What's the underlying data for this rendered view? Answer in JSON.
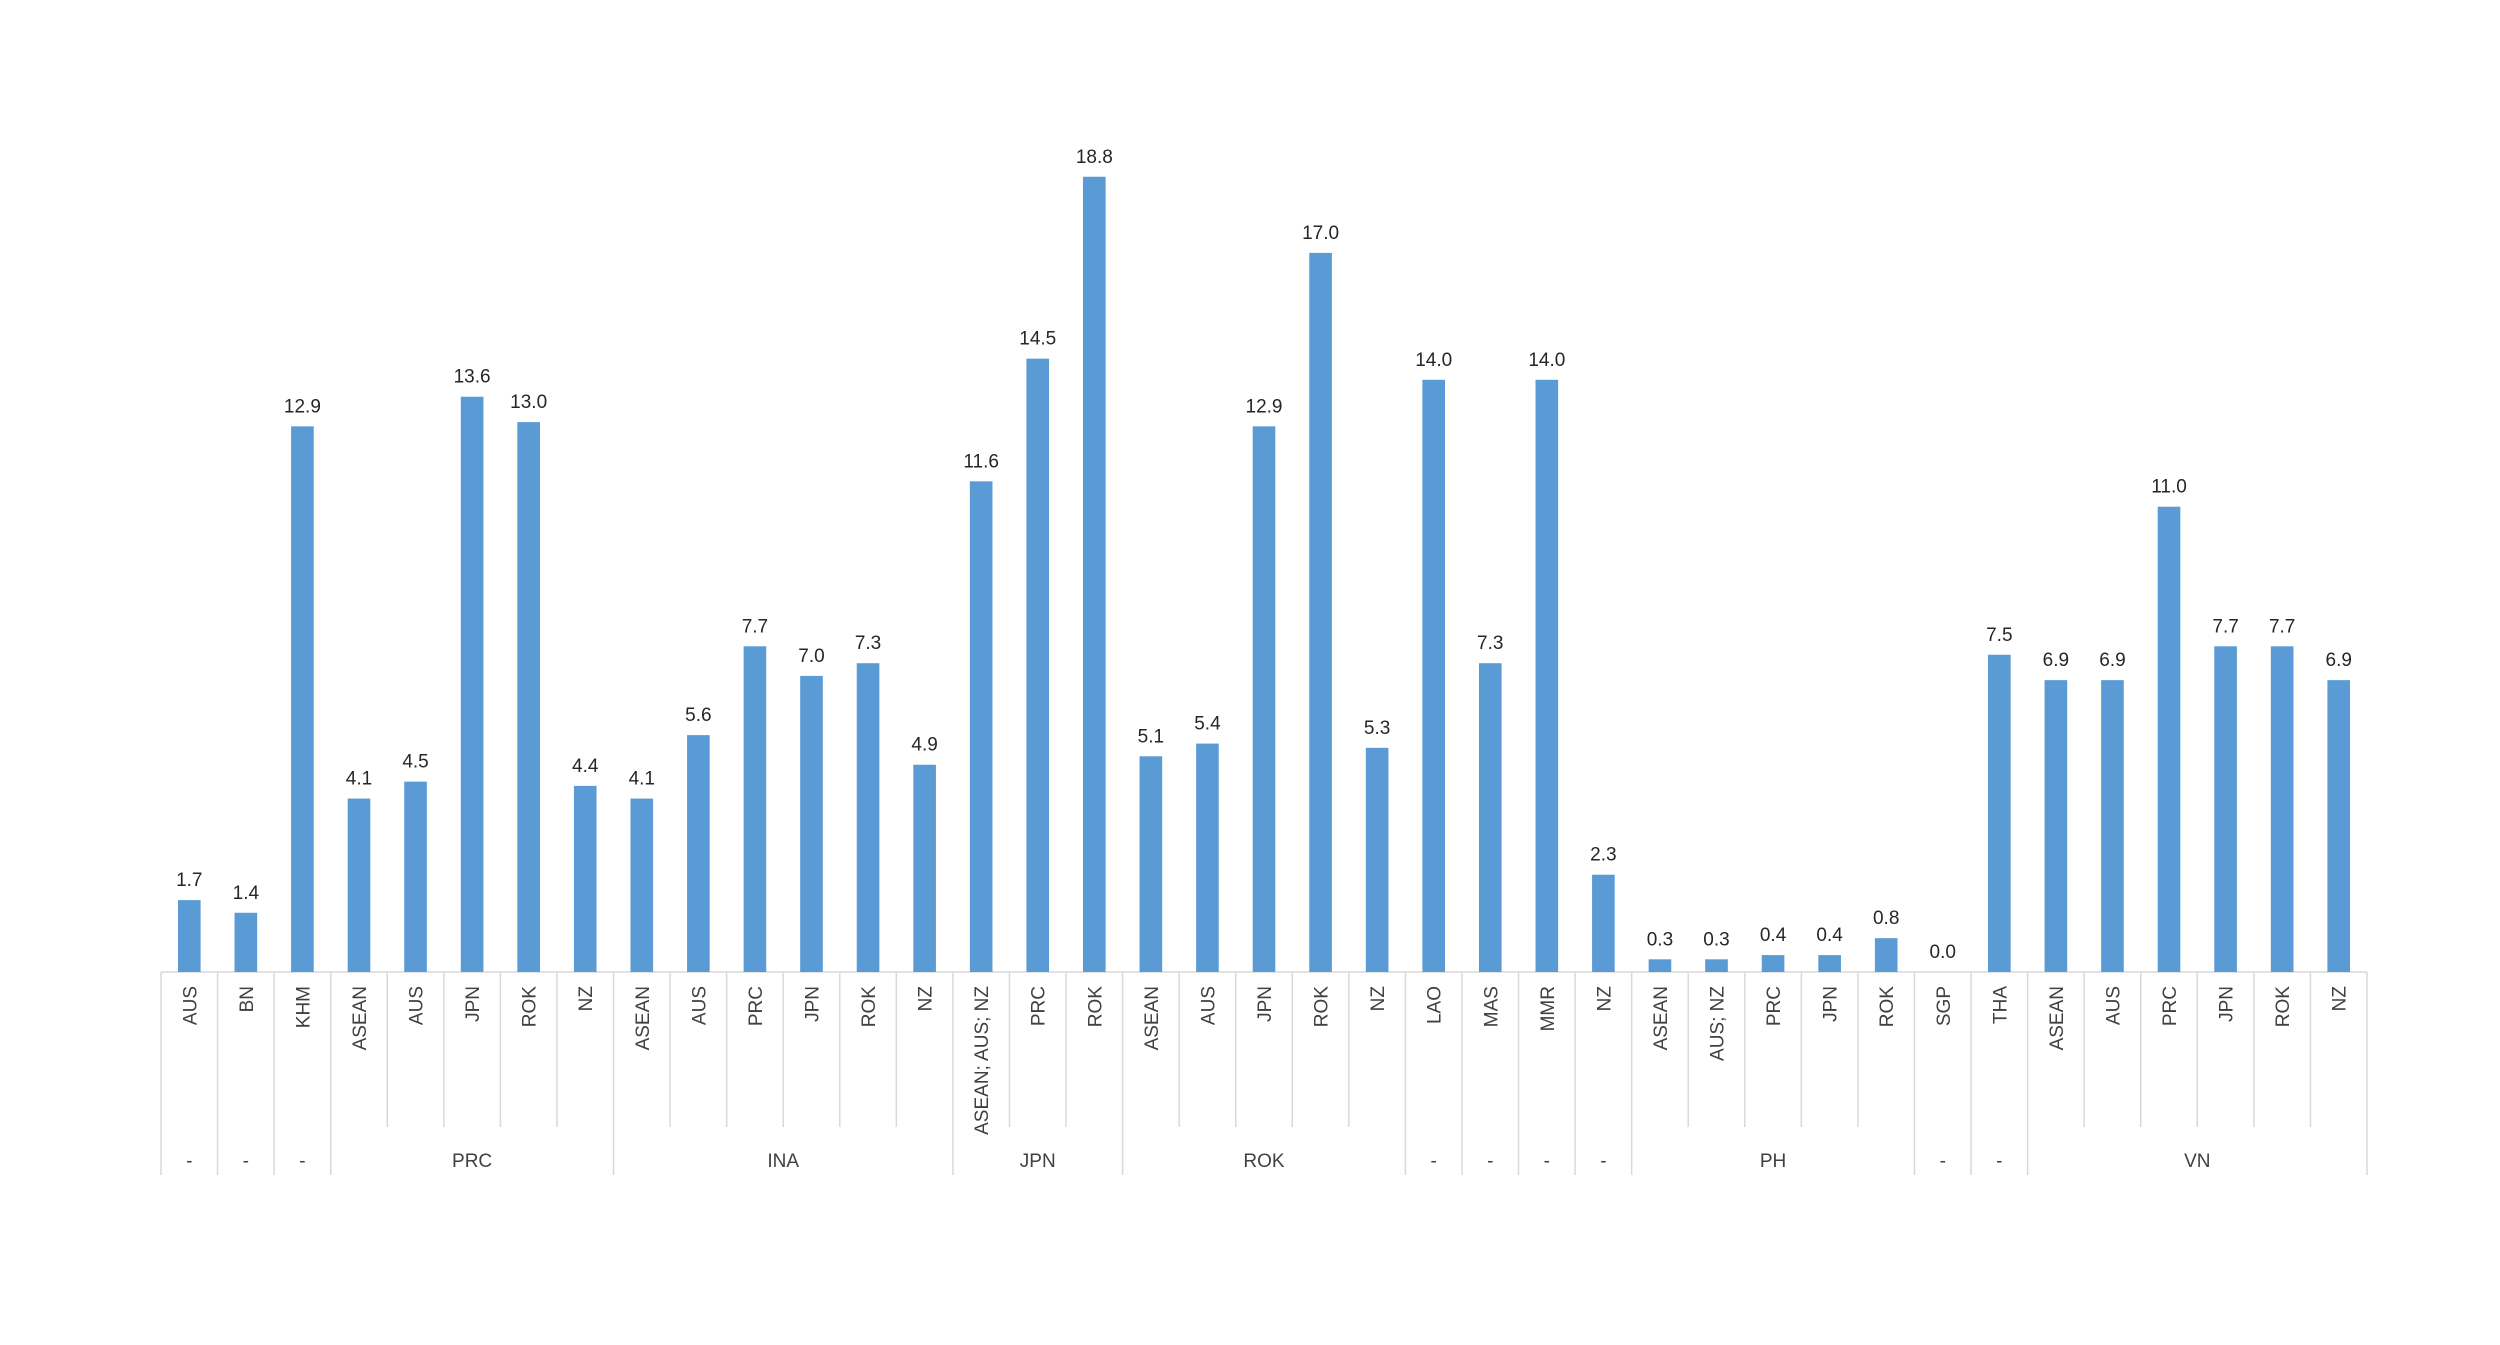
{
  "chart_data": {
    "type": "bar",
    "color": "#5b9bd5",
    "ylim": [
      0,
      20
    ],
    "groups": [
      {
        "label": "-",
        "categories": [
          "AUS"
        ],
        "values": [
          1.7
        ],
        "value_labels": [
          "1.7"
        ]
      },
      {
        "label": "-",
        "categories": [
          "BN"
        ],
        "values": [
          1.4
        ],
        "value_labels": [
          "1.4"
        ]
      },
      {
        "label": "-",
        "categories": [
          "KHM"
        ],
        "values": [
          12.9
        ],
        "value_labels": [
          "12.9"
        ]
      },
      {
        "label": "PRC",
        "categories": [
          "ASEAN",
          "AUS",
          "JPN",
          "ROK",
          "NZ"
        ],
        "values": [
          4.1,
          4.5,
          13.6,
          13.0,
          4.4
        ],
        "value_labels": [
          "4.1",
          "4.5",
          "13.6",
          "13.0",
          "4.4"
        ]
      },
      {
        "label": "INA",
        "categories": [
          "ASEAN",
          "AUS",
          "PRC",
          "JPN",
          "ROK",
          "NZ"
        ],
        "values": [
          4.1,
          5.6,
          7.7,
          7.0,
          7.3,
          4.9
        ],
        "value_labels": [
          "4.1",
          "5.6",
          "7.7",
          "7.0",
          "7.3",
          "4.9"
        ]
      },
      {
        "label": "JPN",
        "categories": [
          "ASEAN; AUS; NZ",
          "PRC",
          "ROK"
        ],
        "values": [
          11.6,
          14.5,
          18.8
        ],
        "value_labels": [
          "11.6",
          "14.5",
          "18.8"
        ]
      },
      {
        "label": "ROK",
        "categories": [
          "ASEAN",
          "AUS",
          "JPN",
          "ROK",
          "NZ"
        ],
        "values": [
          5.1,
          5.4,
          12.9,
          17.0,
          5.3
        ],
        "value_labels": [
          "5.1",
          "5.4",
          "12.9",
          "17.0",
          "5.3"
        ]
      },
      {
        "label": "-",
        "categories": [
          "LAO"
        ],
        "values": [
          14.0
        ],
        "value_labels": [
          "14.0"
        ]
      },
      {
        "label": "-",
        "categories": [
          "MAS"
        ],
        "values": [
          7.3
        ],
        "value_labels": [
          "7.3"
        ]
      },
      {
        "label": "-",
        "categories": [
          "MMR"
        ],
        "values": [
          14.0
        ],
        "value_labels": [
          "14.0"
        ]
      },
      {
        "label": "-",
        "categories": [
          "NZ"
        ],
        "values": [
          2.3
        ],
        "value_labels": [
          "2.3"
        ]
      },
      {
        "label": "PH",
        "categories": [
          "ASEAN",
          "AUS; NZ",
          "PRC",
          "JPN",
          "ROK"
        ],
        "values": [
          0.3,
          0.3,
          0.4,
          0.4,
          0.8
        ],
        "value_labels": [
          "0.3",
          "0.3",
          "0.4",
          "0.4",
          "0.8"
        ]
      },
      {
        "label": "-",
        "categories": [
          "SGP"
        ],
        "values": [
          0.0
        ],
        "value_labels": [
          "0.0"
        ]
      },
      {
        "label": "-",
        "categories": [
          "THA"
        ],
        "values": [
          7.5
        ],
        "value_labels": [
          "7.5"
        ]
      },
      {
        "label": "VN",
        "categories": [
          "ASEAN",
          "AUS",
          "PRC",
          "JPN",
          "ROK",
          "NZ"
        ],
        "values": [
          6.9,
          6.9,
          11.0,
          7.7,
          7.7,
          6.9
        ],
        "value_labels": [
          "6.9",
          "6.9",
          "11.0",
          "7.7",
          "7.7",
          "6.9"
        ]
      }
    ]
  }
}
